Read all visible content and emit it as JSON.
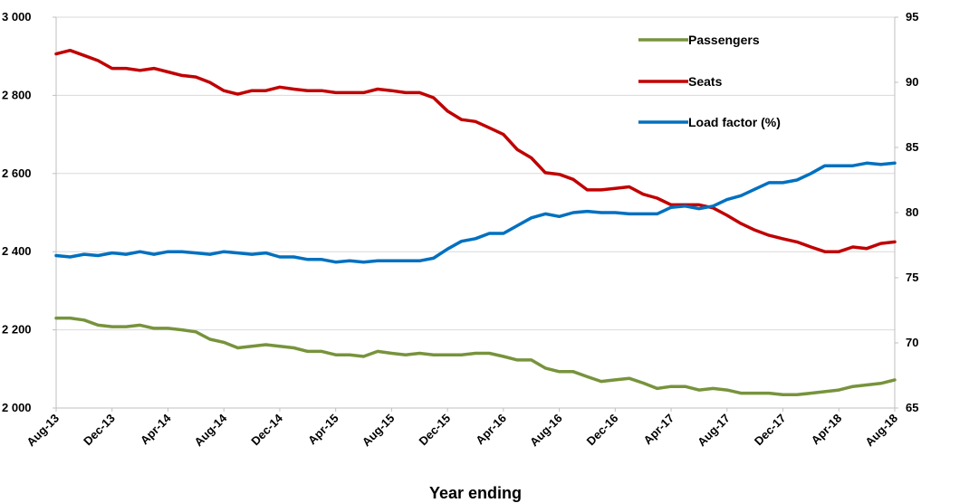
{
  "chart_data": {
    "type": "line",
    "xlabel": "Year ending",
    "x_tick_labels": [
      "Aug-13",
      "Dec-13",
      "Apr-14",
      "Aug-14",
      "Dec-14",
      "Apr-15",
      "Aug-15",
      "Dec-15",
      "Apr-16",
      "Aug-16",
      "Dec-16",
      "Apr-17",
      "Aug-17",
      "Dec-17",
      "Apr-18",
      "Aug-18"
    ],
    "x_start": "Aug-13",
    "x_end": "Aug-18",
    "y_left": {
      "ylim": [
        2000,
        3000
      ],
      "ticks": [
        2000,
        2200,
        2400,
        2600,
        2800,
        3000
      ],
      "tick_labels": [
        "2 000",
        "2 200",
        "2 400",
        "2 600",
        "2 800",
        "3 000"
      ]
    },
    "y_right": {
      "ylim": [
        65,
        95
      ],
      "ticks": [
        65,
        70,
        75,
        80,
        85,
        90,
        95
      ],
      "tick_labels": [
        "65",
        "70",
        "75",
        "80",
        "85",
        "90",
        "95"
      ]
    },
    "grid": "horizontal",
    "legend_position": "top-right",
    "series": [
      {
        "name": "Passengers",
        "axis": "left",
        "color": "#77933c",
        "values": [
          2230,
          2230,
          2225,
          2212,
          2208,
          2208,
          2212,
          2204,
          2204,
          2200,
          2195,
          2176,
          2168,
          2154,
          2158,
          2162,
          2158,
          2154,
          2145,
          2145,
          2136,
          2136,
          2132,
          2145,
          2140,
          2136,
          2140,
          2136,
          2136,
          2136,
          2140,
          2140,
          2132,
          2123,
          2123,
          2102,
          2093,
          2093,
          2080,
          2068,
          2072,
          2076,
          2064,
          2050,
          2055,
          2055,
          2046,
          2050,
          2046,
          2038,
          2038,
          2038,
          2034,
          2034,
          2038,
          2042,
          2046,
          2055,
          2059,
          2063,
          2072
        ]
      },
      {
        "name": "Seats",
        "axis": "left",
        "color": "#c00000",
        "values": [
          2906,
          2915,
          2902,
          2889,
          2869,
          2869,
          2864,
          2869,
          2860,
          2851,
          2847,
          2833,
          2812,
          2803,
          2812,
          2812,
          2821,
          2816,
          2812,
          2812,
          2807,
          2807,
          2807,
          2816,
          2812,
          2807,
          2807,
          2794,
          2760,
          2738,
          2733,
          2717,
          2700,
          2661,
          2640,
          2602,
          2598,
          2585,
          2558,
          2558,
          2562,
          2566,
          2547,
          2537,
          2520,
          2520,
          2520,
          2512,
          2493,
          2472,
          2455,
          2442,
          2433,
          2425,
          2412,
          2400,
          2400,
          2412,
          2408,
          2421,
          2425
        ]
      },
      {
        "name": "Load factor (%)",
        "axis": "right",
        "color": "#0070c0",
        "values": [
          76.7,
          76.6,
          76.8,
          76.7,
          76.9,
          76.8,
          77.0,
          76.8,
          77.0,
          77.0,
          76.9,
          76.8,
          77.0,
          76.9,
          76.8,
          76.9,
          76.6,
          76.6,
          76.4,
          76.4,
          76.2,
          76.3,
          76.2,
          76.3,
          76.3,
          76.3,
          76.3,
          76.5,
          77.2,
          77.8,
          78.0,
          78.4,
          78.4,
          79.0,
          79.6,
          79.9,
          79.7,
          80.0,
          80.1,
          80.0,
          80.0,
          79.9,
          79.9,
          79.9,
          80.4,
          80.5,
          80.3,
          80.5,
          81.0,
          81.3,
          81.8,
          82.3,
          82.3,
          82.5,
          83.0,
          83.6,
          83.6,
          83.6,
          83.8,
          83.7,
          83.8
        ]
      }
    ]
  }
}
